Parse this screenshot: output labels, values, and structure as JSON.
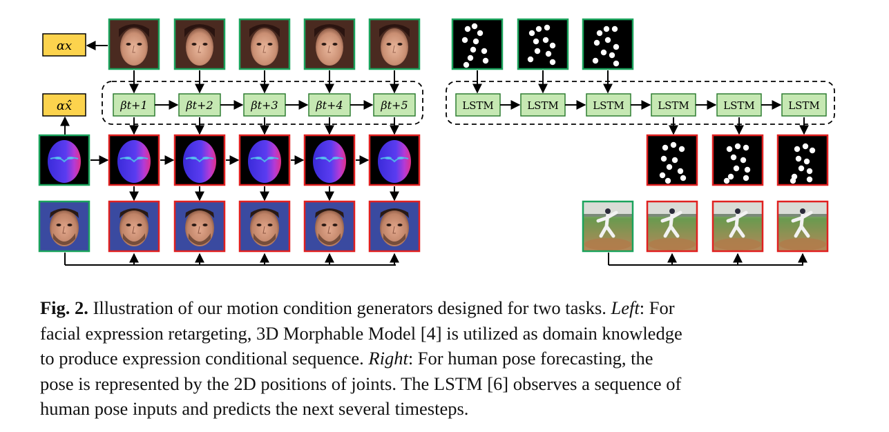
{
  "figure": {
    "alpha_x_label": "αx",
    "alpha_xhat_label": "αx̂",
    "beta_labels": [
      "βt+1",
      "βt+2",
      "βt+3",
      "βt+4",
      "βt+5"
    ],
    "lstm_label": "LSTM",
    "lstm_count": 6,
    "border_colors": {
      "input": "#1aa35c",
      "generated": "#e02020"
    },
    "box_colors": {
      "alpha_fill": "#fcd34d",
      "beta_fill": "#c6e8b3",
      "beta_border": "#2e7d32"
    },
    "images": {
      "input_faces": [
        "woman-face-1",
        "woman-face-2",
        "woman-face-3",
        "woman-face-4",
        "woman-face-5"
      ],
      "pose_inputs": [
        "pose-map-1",
        "pose-map-2",
        "pose-map-3"
      ],
      "pose_outputs": [
        "pose-map-4",
        "pose-map-5",
        "pose-map-6"
      ],
      "baseball_frames": [
        "baseball-frame-1",
        "baseball-frame-2",
        "baseball-frame-3",
        "baseball-frame-4"
      ]
    }
  },
  "caption": {
    "fig_label": "Fig. 2.",
    "line1_rest": " Illustration of our motion condition generators designed for two tasks. ",
    "left_word": "Left",
    "line1_end": ": For",
    "line2": "facial expression retargeting, 3D Morphable Model [4] is utilized as domain knowledge",
    "line3_start": "to produce expression conditional sequence. ",
    "right_word": "Right",
    "line3_end": ": For human pose forecasting, the",
    "line4": "pose is represented by the 2D positions of joints. The LSTM [6] observes a sequence of",
    "line5": "human pose inputs and predicts the next several timesteps."
  }
}
